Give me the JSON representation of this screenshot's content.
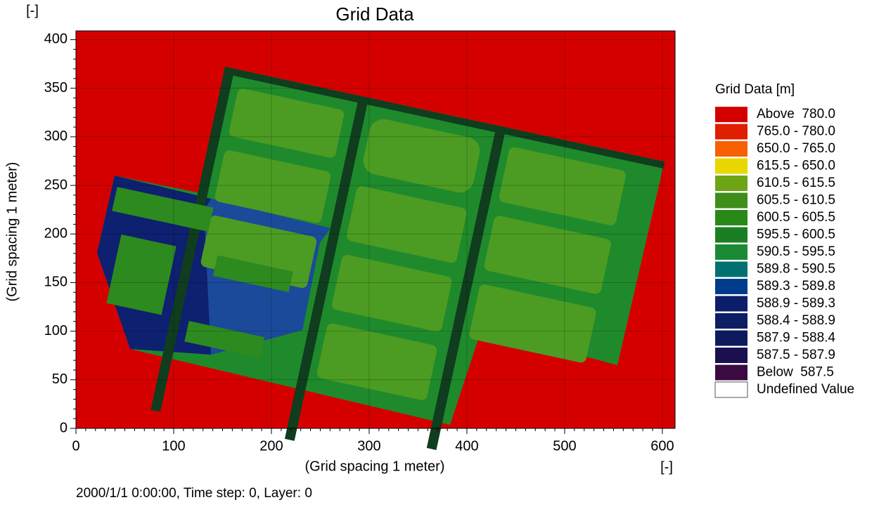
{
  "chart_data": {
    "type": "grid-map",
    "title": "Grid Data",
    "xlabel": "(Grid spacing 1 meter)",
    "ylabel": "(Grid spacing 1 meter)",
    "xunit": "[-]",
    "yunit": "[-]",
    "xlim": [
      0,
      613
    ],
    "ylim": [
      0,
      409
    ],
    "xticks": [
      0,
      100,
      200,
      300,
      400,
      500,
      600
    ],
    "yticks": [
      0,
      50,
      100,
      150,
      200,
      250,
      300,
      350,
      400
    ],
    "legend": {
      "title": "Grid Data [m]",
      "position": "right",
      "items": [
        {
          "name": "Above  780.0",
          "color": "#d40000"
        },
        {
          "name": "765.0 - 780.0",
          "color": "#e01e00"
        },
        {
          "name": "650.0 - 765.0",
          "color": "#f86000"
        },
        {
          "name": "615.5 - 650.0",
          "color": "#e8d800"
        },
        {
          "name": "610.5 - 615.5",
          "color": "#6ea514"
        },
        {
          "name": "605.5 - 610.5",
          "color": "#3f8e1a"
        },
        {
          "name": "600.5 - 605.5",
          "color": "#2a8818"
        },
        {
          "name": "595.5 - 600.5",
          "color": "#1a7f22"
        },
        {
          "name": "590.5 - 595.5",
          "color": "#1a8a35"
        },
        {
          "name": "589.8 - 590.5",
          "color": "#007070"
        },
        {
          "name": "589.3 - 589.8",
          "color": "#003c8c"
        },
        {
          "name": "588.9 - 589.3",
          "color": "#0a1e6a"
        },
        {
          "name": "588.4 - 588.9",
          "color": "#0c1e64"
        },
        {
          "name": "587.9 - 588.4",
          "color": "#0e1a5e"
        },
        {
          "name": "587.5 - 587.9",
          "color": "#1a1050"
        },
        {
          "name": "Below  587.5",
          "color": "#3a0a40"
        },
        {
          "name": "Undefined Value",
          "color": "#ffffff"
        }
      ]
    },
    "footer": "2000/1/1 0:00:00, Time step: 0, Layer: 0"
  }
}
